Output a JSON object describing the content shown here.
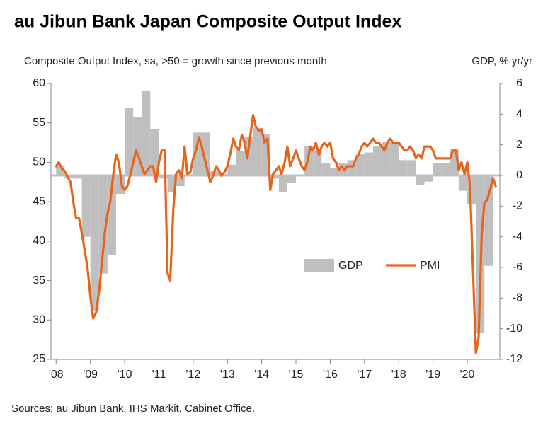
{
  "chart_data": {
    "type": "bar-line",
    "title": "au Jibun Bank Japan Composite Output Index",
    "y_label": "Composite Output Index, sa, >50 = growth since previous month",
    "y2_label": "GDP, % yr/yr",
    "source": "Sources: au Jibun Bank, IHS Markit, Cabinet Office.",
    "xlim": [
      2007.85,
      2020.95
    ],
    "xticks": [
      {
        "value": 2008,
        "label": "'08"
      },
      {
        "value": 2009,
        "label": "'09"
      },
      {
        "value": 2010,
        "label": "'10"
      },
      {
        "value": 2011,
        "label": "'11"
      },
      {
        "value": 2012,
        "label": "'12"
      },
      {
        "value": 2013,
        "label": "'13"
      },
      {
        "value": 2014,
        "label": "'14"
      },
      {
        "value": 2015,
        "label": "'15"
      },
      {
        "value": 2016,
        "label": "'16"
      },
      {
        "value": 2017,
        "label": "'17"
      },
      {
        "value": 2018,
        "label": "'18"
      },
      {
        "value": 2019,
        "label": "'19"
      },
      {
        "value": 2020,
        "label": "'20"
      }
    ],
    "ylim": [
      25,
      60
    ],
    "yticks": [
      25,
      30,
      35,
      40,
      45,
      50,
      55,
      60
    ],
    "y2lim": [
      -12,
      6
    ],
    "y2ticks": [
      -12,
      -10,
      -8,
      -6,
      -4,
      -2,
      0,
      2,
      4,
      6
    ],
    "legend": "center-right",
    "grid": false,
    "series": [
      {
        "name": "GDP",
        "type": "bar",
        "axis": "y2",
        "color": "#bfbfbf",
        "x": [
          2008,
          2008.25,
          2008.5,
          2008.75,
          2009,
          2009.25,
          2009.5,
          2009.75,
          2010,
          2010.25,
          2010.5,
          2010.75,
          2011,
          2011.25,
          2011.5,
          2011.75,
          2012,
          2012.25,
          2012.5,
          2012.75,
          2013,
          2013.25,
          2013.5,
          2013.75,
          2014,
          2014.25,
          2014.5,
          2014.75,
          2015,
          2015.25,
          2015.5,
          2015.75,
          2016,
          2016.25,
          2016.5,
          2016.75,
          2017,
          2017.25,
          2017.5,
          2017.75,
          2018,
          2018.25,
          2018.5,
          2018.75,
          2019,
          2019.25,
          2019.5,
          2019.75,
          2020,
          2020.25,
          2020.5
        ],
        "values": [
          0.6,
          -0.2,
          -0.2,
          -4.0,
          -8.8,
          -6.4,
          -5.2,
          -1.2,
          4.4,
          3.8,
          5.5,
          3.0,
          -0.2,
          -1.1,
          -0.7,
          0.0,
          2.8,
          2.8,
          0.3,
          0.1,
          0.7,
          1.6,
          2.5,
          3.1,
          2.7,
          -0.2,
          -1.1,
          -0.5,
          0.0,
          1.9,
          1.6,
          0.8,
          0.5,
          0.8,
          1.0,
          1.4,
          1.5,
          1.9,
          2.2,
          2.2,
          1.0,
          1.0,
          -0.6,
          -0.4,
          0.8,
          0.8,
          1.7,
          -1.0,
          -1.9,
          -10.3,
          -5.9
        ]
      },
      {
        "name": "PMI",
        "type": "line",
        "color": "#e8641b",
        "x": [
          2008,
          2008.08,
          2008.17,
          2008.25,
          2008.33,
          2008.42,
          2008.5,
          2008.58,
          2008.67,
          2008.75,
          2008.83,
          2008.92,
          2009,
          2009.08,
          2009.17,
          2009.25,
          2009.33,
          2009.42,
          2009.5,
          2009.58,
          2009.67,
          2009.75,
          2009.83,
          2009.92,
          2010,
          2010.08,
          2010.17,
          2010.25,
          2010.33,
          2010.42,
          2010.5,
          2010.58,
          2010.67,
          2010.75,
          2010.83,
          2010.92,
          2011,
          2011.08,
          2011.17,
          2011.25,
          2011.33,
          2011.42,
          2011.5,
          2011.58,
          2011.67,
          2011.75,
          2011.83,
          2011.92,
          2012,
          2012.08,
          2012.17,
          2012.25,
          2012.33,
          2012.42,
          2012.5,
          2012.58,
          2012.67,
          2012.75,
          2012.83,
          2012.92,
          2013,
          2013.08,
          2013.17,
          2013.25,
          2013.33,
          2013.42,
          2013.5,
          2013.58,
          2013.67,
          2013.75,
          2013.83,
          2013.92,
          2014,
          2014.08,
          2014.17,
          2014.25,
          2014.33,
          2014.42,
          2014.5,
          2014.58,
          2014.67,
          2014.75,
          2014.83,
          2014.92,
          2015,
          2015.08,
          2015.17,
          2015.25,
          2015.33,
          2015.42,
          2015.5,
          2015.58,
          2015.67,
          2015.75,
          2015.83,
          2015.92,
          2016,
          2016.08,
          2016.17,
          2016.25,
          2016.33,
          2016.42,
          2016.5,
          2016.58,
          2016.67,
          2016.75,
          2016.83,
          2016.92,
          2017,
          2017.08,
          2017.17,
          2017.25,
          2017.33,
          2017.42,
          2017.5,
          2017.58,
          2017.67,
          2017.75,
          2017.83,
          2017.92,
          2018,
          2018.08,
          2018.17,
          2018.25,
          2018.33,
          2018.42,
          2018.5,
          2018.58,
          2018.67,
          2018.75,
          2018.83,
          2018.92,
          2019,
          2019.08,
          2019.17,
          2019.25,
          2019.33,
          2019.42,
          2019.5,
          2019.58,
          2019.67,
          2019.75,
          2019.83,
          2019.92,
          2020,
          2020.08,
          2020.17,
          2020.25,
          2020.33,
          2020.42,
          2020.5,
          2020.58,
          2020.67,
          2020.75,
          2020.83
        ],
        "values": [
          49.5,
          50.0,
          49.2,
          48.9,
          48.2,
          47.5,
          45.0,
          43.0,
          42.9,
          41.0,
          39.0,
          36.5,
          33.0,
          30.2,
          31.0,
          33.5,
          37.0,
          41.0,
          43.5,
          45.0,
          48.5,
          51.0,
          50.0,
          47.0,
          46.5,
          47.0,
          48.5,
          50.0,
          51.5,
          50.5,
          49.5,
          48.5,
          49.0,
          49.5,
          49.5,
          47.5,
          50.0,
          51.5,
          51.5,
          36.0,
          35.0,
          44.0,
          48.5,
          49.0,
          48.0,
          52.0,
          48.5,
          48.8,
          50.5,
          51.5,
          53.2,
          52.0,
          50.5,
          49.0,
          47.5,
          48.3,
          49.5,
          49.0,
          48.3,
          48.8,
          49.5,
          51.0,
          53.0,
          52.0,
          51.5,
          53.5,
          52.5,
          50.5,
          53.5,
          56.0,
          54.5,
          54.0,
          54.2,
          52.5,
          53.0,
          46.5,
          48.5,
          49.0,
          49.5,
          48.5,
          50.0,
          52.0,
          49.5,
          50.5,
          51.5,
          50.5,
          49.5,
          49.0,
          50.0,
          52.0,
          51.5,
          52.5,
          51.0,
          52.0,
          52.5,
          52.0,
          52.5,
          50.5,
          50.0,
          49.0,
          49.5,
          49.0,
          49.5,
          49.5,
          49.5,
          50.5,
          51.0,
          52.0,
          52.5,
          52.0,
          52.5,
          53.0,
          52.5,
          52.5,
          52.0,
          51.5,
          52.5,
          53.0,
          52.5,
          52.5,
          52.5,
          52.0,
          51.5,
          51.5,
          52.0,
          51.5,
          50.5,
          51.0,
          50.5,
          52.0,
          52.0,
          52.0,
          51.5,
          50.5,
          50.5,
          50.5,
          50.5,
          50.5,
          50.5,
          51.5,
          51.5,
          49.0,
          50.0,
          48.5,
          50.0,
          47.0,
          36.0,
          25.8,
          27.8,
          40.8,
          44.9,
          45.2,
          46.6,
          48.0,
          47.0
        ]
      }
    ]
  }
}
